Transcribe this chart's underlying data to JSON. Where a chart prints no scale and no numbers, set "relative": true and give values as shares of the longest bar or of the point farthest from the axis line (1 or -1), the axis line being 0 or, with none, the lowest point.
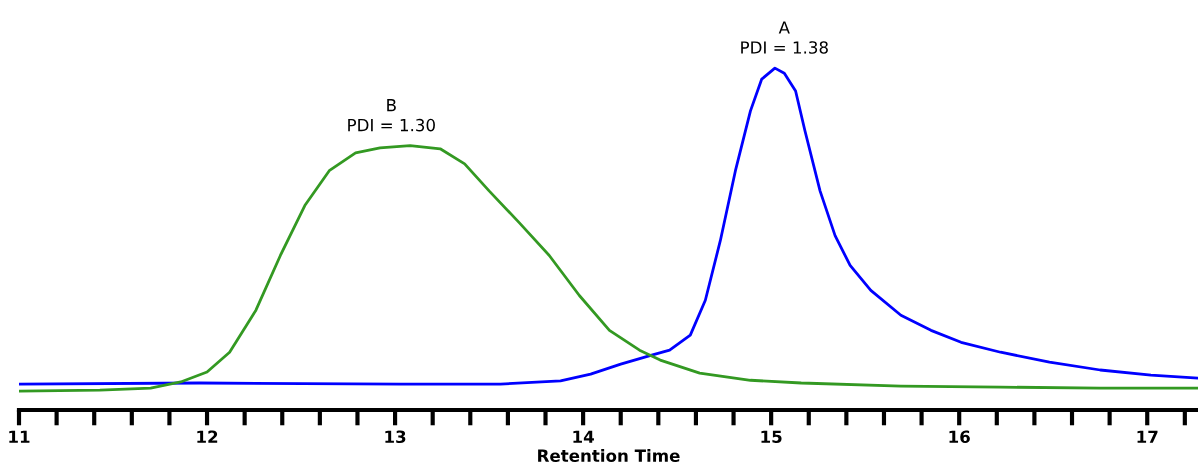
{
  "chart_data": {
    "type": "line",
    "relative": true,
    "xlabel": "Retention Time",
    "xlim": [
      11,
      17.27
    ],
    "xticks": [
      11,
      {
        "value": 11.2,
        "label": null
      },
      {
        "value": 11.4,
        "label": null
      },
      {
        "value": 11.6,
        "label": null
      },
      {
        "value": 11.8,
        "label": null
      },
      12,
      {
        "value": 12.2,
        "label": null
      },
      {
        "value": 12.4,
        "label": null
      },
      {
        "value": 12.6,
        "label": null
      },
      {
        "value": 12.8,
        "label": null
      },
      13,
      {
        "value": 13.2,
        "label": null
      },
      {
        "value": 13.4,
        "label": null
      },
      {
        "value": 13.6,
        "label": null
      },
      {
        "value": 13.8,
        "label": null
      },
      14,
      {
        "value": 14.2,
        "label": null
      },
      {
        "value": 14.4,
        "label": null
      },
      {
        "value": 14.6,
        "label": null
      },
      {
        "value": 14.8,
        "label": null
      },
      15,
      {
        "value": 15.2,
        "label": null
      },
      {
        "value": 15.4,
        "label": null
      },
      {
        "value": 15.6,
        "label": null
      },
      {
        "value": 15.8,
        "label": null
      },
      16,
      {
        "value": 16.2,
        "label": null
      },
      {
        "value": 16.4,
        "label": null
      },
      {
        "value": 16.6,
        "label": null
      },
      {
        "value": 16.8,
        "label": null
      },
      17,
      {
        "value": 17.2,
        "label": null
      }
    ],
    "tick_labels": "x",
    "series": [
      {
        "color": "#0000ff",
        "x": [
          11.0,
          11.96,
          13.03,
          13.56,
          13.88,
          14.04,
          14.2,
          14.36,
          14.46,
          14.57,
          14.65,
          14.73,
          14.81,
          14.89,
          14.95,
          15.02,
          15.07,
          15.13,
          15.18,
          15.26,
          15.34,
          15.42,
          15.53,
          15.69,
          15.85,
          16.01,
          16.22,
          16.48,
          16.75,
          17.02,
          17.27
        ],
        "values": [
          0.076,
          0.079,
          0.076,
          0.076,
          0.085,
          0.105,
          0.134,
          0.16,
          0.175,
          0.219,
          0.321,
          0.496,
          0.7,
          0.875,
          0.968,
          1.0,
          0.985,
          0.933,
          0.816,
          0.641,
          0.51,
          0.423,
          0.35,
          0.277,
          0.233,
          0.198,
          0.169,
          0.14,
          0.117,
          0.102,
          0.093
        ]
      },
      {
        "color": "#339922",
        "x": [
          11.0,
          11.43,
          11.7,
          11.86,
          12.0,
          12.12,
          12.26,
          12.39,
          12.52,
          12.65,
          12.79,
          12.92,
          13.08,
          13.24,
          13.37,
          13.5,
          13.66,
          13.82,
          13.98,
          14.14,
          14.3,
          14.41,
          14.62,
          14.89,
          15.16,
          15.69,
          16.22,
          16.75,
          17.27
        ],
        "values": [
          0.055,
          0.058,
          0.064,
          0.082,
          0.111,
          0.169,
          0.292,
          0.452,
          0.598,
          0.7,
          0.752,
          0.767,
          0.773,
          0.764,
          0.72,
          0.641,
          0.548,
          0.452,
          0.335,
          0.233,
          0.175,
          0.146,
          0.108,
          0.087,
          0.079,
          0.07,
          0.067,
          0.064,
          0.064
        ]
      }
    ],
    "annotations": [
      {
        "text": "A\nPDI = 1.38",
        "x": 15.07,
        "y": 1.0
      },
      {
        "text": "B\nPDI = 1.30",
        "x": 12.98,
        "y": 0.773
      }
    ]
  }
}
